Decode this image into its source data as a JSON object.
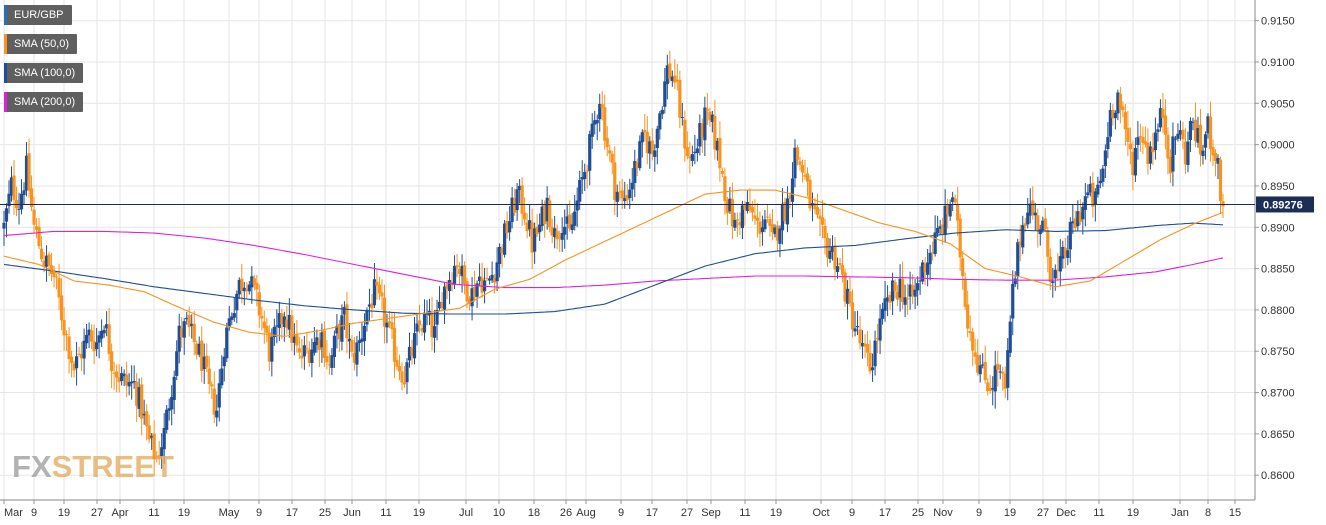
{
  "chart_data": {
    "type": "candlestick",
    "symbol": "EUR/GBP",
    "legend": [
      {
        "name": "EUR/GBP",
        "color": "#2a6fb3"
      },
      {
        "name": "SMA (50,0)",
        "color": "#f7931e"
      },
      {
        "name": "SMA (100,0)",
        "color": "#1f4e96"
      },
      {
        "name": "SMA (200,0)",
        "color": "#e020e0"
      }
    ],
    "legend_placement": "top-left",
    "current_price": "0.89276",
    "current_price_value": 0.89276,
    "ylim": [
      0.857,
      0.9175
    ],
    "y_ticks": [
      "0.9150",
      "0.9100",
      "0.9050",
      "0.9000",
      "0.8950",
      "0.8900",
      "0.8850",
      "0.8800",
      "0.8750",
      "0.8700",
      "0.8650",
      "0.8600"
    ],
    "y_tick_values": [
      0.915,
      0.91,
      0.905,
      0.9,
      0.895,
      0.89,
      0.885,
      0.88,
      0.875,
      0.87,
      0.865,
      0.86
    ],
    "x_ticks": [
      "Mar",
      "9",
      "19",
      "27",
      "Apr",
      "11",
      "19",
      "May",
      "9",
      "17",
      "25",
      "Jun",
      "11",
      "19",
      "Jul",
      "10",
      "18",
      "26",
      "Aug",
      "9",
      "17",
      "27",
      "Sep",
      "11",
      "19",
      "Oct",
      "9",
      "17",
      "25",
      "Nov",
      "9",
      "19",
      "27",
      "Dec",
      "11",
      "19",
      "Jan",
      "8",
      "15"
    ],
    "grid": true,
    "colors": {
      "bull": "#1f4e96",
      "bear": "#f7931e",
      "sma50": "#f7931e",
      "sma100": "#1f4e96",
      "sma200": "#e020e0",
      "grid": "#e6e6e6"
    },
    "close_path": [
      [
        0,
        0.89
      ],
      [
        3,
        0.895
      ],
      [
        6,
        0.893
      ],
      [
        9,
        0.897
      ],
      [
        12,
        0.89
      ],
      [
        16,
        0.886
      ],
      [
        20,
        0.884
      ],
      [
        24,
        0.878
      ],
      [
        28,
        0.873
      ],
      [
        31,
        0.875
      ],
      [
        34,
        0.877
      ],
      [
        37,
        0.876
      ],
      [
        40,
        0.879
      ],
      [
        43,
        0.874
      ],
      [
        46,
        0.872
      ],
      [
        49,
        0.871
      ],
      [
        52,
        0.871
      ],
      [
        55,
        0.868
      ],
      [
        58,
        0.864
      ],
      [
        61,
        0.862
      ],
      [
        64,
        0.865
      ],
      [
        67,
        0.871
      ],
      [
        70,
        0.877
      ],
      [
        73,
        0.878
      ],
      [
        76,
        0.876
      ],
      [
        79,
        0.874
      ],
      [
        82,
        0.87
      ],
      [
        85,
        0.868
      ],
      [
        88,
        0.876
      ],
      [
        91,
        0.88
      ],
      [
        94,
        0.883
      ],
      [
        97,
        0.884
      ],
      [
        100,
        0.882
      ],
      [
        103,
        0.879
      ],
      [
        106,
        0.875
      ],
      [
        109,
        0.877
      ],
      [
        112,
        0.88
      ],
      [
        115,
        0.877
      ],
      [
        118,
        0.874
      ],
      [
        121,
        0.875
      ],
      [
        124,
        0.876
      ],
      [
        127,
        0.877
      ],
      [
        130,
        0.873
      ],
      [
        133,
        0.877
      ],
      [
        136,
        0.879
      ],
      [
        139,
        0.874
      ],
      [
        142,
        0.876
      ],
      [
        145,
        0.88
      ],
      [
        148,
        0.882
      ],
      [
        151,
        0.88
      ],
      [
        154,
        0.877
      ],
      [
        157,
        0.874
      ],
      [
        160,
        0.872
      ],
      [
        163,
        0.875
      ],
      [
        166,
        0.878
      ],
      [
        169,
        0.879
      ],
      [
        172,
        0.877
      ],
      [
        175,
        0.882
      ],
      [
        178,
        0.884
      ],
      [
        181,
        0.886
      ],
      [
        184,
        0.883
      ],
      [
        187,
        0.882
      ],
      [
        190,
        0.884
      ],
      [
        193,
        0.883
      ],
      [
        196,
        0.885
      ],
      [
        199,
        0.888
      ],
      [
        202,
        0.891
      ],
      [
        205,
        0.894
      ],
      [
        208,
        0.892
      ],
      [
        211,
        0.888
      ],
      [
        214,
        0.89
      ],
      [
        217,
        0.893
      ],
      [
        220,
        0.889
      ],
      [
        223,
        0.891
      ],
      [
        226,
        0.889
      ],
      [
        229,
        0.893
      ],
      [
        232,
        0.897
      ],
      [
        235,
        0.901
      ],
      [
        238,
        0.906
      ],
      [
        241,
        0.9
      ],
      [
        244,
        0.895
      ],
      [
        247,
        0.893
      ],
      [
        250,
        0.895
      ],
      [
        253,
        0.898
      ],
      [
        256,
        0.901
      ],
      [
        259,
        0.899
      ],
      [
        262,
        0.904
      ],
      [
        265,
        0.909
      ],
      [
        268,
        0.908
      ],
      [
        271,
        0.902
      ],
      [
        274,
        0.898
      ],
      [
        277,
        0.9
      ],
      [
        280,
        0.903
      ],
      [
        283,
        0.902
      ],
      [
        286,
        0.898
      ],
      [
        289,
        0.893
      ],
      [
        292,
        0.89
      ],
      [
        295,
        0.892
      ],
      [
        298,
        0.892
      ],
      [
        301,
        0.89
      ],
      [
        304,
        0.891
      ],
      [
        307,
        0.888
      ],
      [
        310,
        0.891
      ],
      [
        313,
        0.893
      ],
      [
        316,
        0.899
      ],
      [
        319,
        0.897
      ],
      [
        322,
        0.893
      ],
      [
        325,
        0.89
      ],
      [
        328,
        0.888
      ],
      [
        331,
        0.887
      ],
      [
        334,
        0.885
      ],
      [
        337,
        0.881
      ],
      [
        340,
        0.878
      ],
      [
        343,
        0.875
      ],
      [
        346,
        0.873
      ],
      [
        349,
        0.877
      ],
      [
        352,
        0.88
      ],
      [
        355,
        0.882
      ],
      [
        358,
        0.883
      ],
      [
        361,
        0.881
      ],
      [
        364,
        0.882
      ],
      [
        367,
        0.885
      ],
      [
        370,
        0.887
      ],
      [
        373,
        0.889
      ],
      [
        376,
        0.891
      ],
      [
        379,
        0.894
      ],
      [
        382,
        0.887
      ],
      [
        385,
        0.879
      ],
      [
        388,
        0.875
      ],
      [
        391,
        0.872
      ],
      [
        394,
        0.871
      ],
      [
        397,
        0.873
      ],
      [
        400,
        0.87
      ],
      [
        403,
        0.882
      ],
      [
        406,
        0.889
      ],
      [
        409,
        0.893
      ],
      [
        412,
        0.891
      ],
      [
        415,
        0.89
      ],
      [
        418,
        0.885
      ],
      [
        421,
        0.884
      ],
      [
        424,
        0.887
      ],
      [
        427,
        0.89
      ],
      [
        430,
        0.892
      ],
      [
        433,
        0.894
      ],
      [
        436,
        0.893
      ],
      [
        439,
        0.897
      ],
      [
        442,
        0.904
      ],
      [
        445,
        0.906
      ],
      [
        448,
        0.901
      ],
      [
        451,
        0.898
      ],
      [
        454,
        0.902
      ],
      [
        457,
        0.899
      ],
      [
        460,
        0.901
      ],
      [
        463,
        0.904
      ],
      [
        466,
        0.898
      ],
      [
        469,
        0.902
      ],
      [
        472,
        0.899
      ],
      [
        475,
        0.903
      ],
      [
        478,
        0.899
      ],
      [
        481,
        0.902
      ],
      [
        484,
        0.899
      ],
      [
        487,
        0.892
      ]
    ],
    "sma50": [
      [
        0,
        0.8865
      ],
      [
        14,
        0.8855
      ],
      [
        28,
        0.8835
      ],
      [
        42,
        0.883
      ],
      [
        56,
        0.8822
      ],
      [
        70,
        0.8803
      ],
      [
        84,
        0.8785
      ],
      [
        98,
        0.8773
      ],
      [
        112,
        0.8768
      ],
      [
        126,
        0.8775
      ],
      [
        140,
        0.8784
      ],
      [
        154,
        0.879
      ],
      [
        168,
        0.8796
      ],
      [
        182,
        0.8802
      ],
      [
        196,
        0.8825
      ],
      [
        210,
        0.8837
      ],
      [
        224,
        0.886
      ],
      [
        238,
        0.888
      ],
      [
        252,
        0.89
      ],
      [
        266,
        0.892
      ],
      [
        280,
        0.894
      ],
      [
        294,
        0.8945
      ],
      [
        308,
        0.8945
      ],
      [
        322,
        0.8935
      ],
      [
        336,
        0.892
      ],
      [
        350,
        0.8905
      ],
      [
        364,
        0.8895
      ],
      [
        378,
        0.888
      ],
      [
        392,
        0.885
      ],
      [
        406,
        0.884
      ],
      [
        420,
        0.8828
      ],
      [
        434,
        0.8835
      ],
      [
        448,
        0.886
      ],
      [
        462,
        0.8885
      ],
      [
        476,
        0.8905
      ],
      [
        487,
        0.8918
      ]
    ],
    "sma100": [
      [
        0,
        0.8855
      ],
      [
        20,
        0.8847
      ],
      [
        40,
        0.8838
      ],
      [
        60,
        0.8828
      ],
      [
        80,
        0.882
      ],
      [
        100,
        0.8812
      ],
      [
        120,
        0.8805
      ],
      [
        140,
        0.88
      ],
      [
        160,
        0.8796
      ],
      [
        180,
        0.8795
      ],
      [
        200,
        0.8795
      ],
      [
        220,
        0.8798
      ],
      [
        240,
        0.8807
      ],
      [
        260,
        0.883
      ],
      [
        280,
        0.8853
      ],
      [
        300,
        0.8868
      ],
      [
        320,
        0.8875
      ],
      [
        340,
        0.8878
      ],
      [
        360,
        0.8886
      ],
      [
        380,
        0.8893
      ],
      [
        400,
        0.8897
      ],
      [
        420,
        0.8895
      ],
      [
        440,
        0.8896
      ],
      [
        460,
        0.8902
      ],
      [
        475,
        0.8905
      ],
      [
        487,
        0.8903
      ]
    ],
    "sma200": [
      [
        0,
        0.889
      ],
      [
        20,
        0.8895
      ],
      [
        40,
        0.8895
      ],
      [
        60,
        0.8893
      ],
      [
        80,
        0.8887
      ],
      [
        100,
        0.8878
      ],
      [
        120,
        0.8867
      ],
      [
        140,
        0.8855
      ],
      [
        160,
        0.8843
      ],
      [
        180,
        0.8831
      ],
      [
        200,
        0.8827
      ],
      [
        220,
        0.8827
      ],
      [
        240,
        0.883
      ],
      [
        260,
        0.8835
      ],
      [
        280,
        0.8838
      ],
      [
        300,
        0.8841
      ],
      [
        320,
        0.8841
      ],
      [
        340,
        0.884
      ],
      [
        360,
        0.8839
      ],
      [
        380,
        0.8837
      ],
      [
        400,
        0.8836
      ],
      [
        420,
        0.8836
      ],
      [
        440,
        0.884
      ],
      [
        460,
        0.8846
      ],
      [
        475,
        0.8855
      ],
      [
        487,
        0.8863
      ]
    ]
  },
  "watermark": {
    "part1": "FX",
    "part2": "STREET"
  }
}
